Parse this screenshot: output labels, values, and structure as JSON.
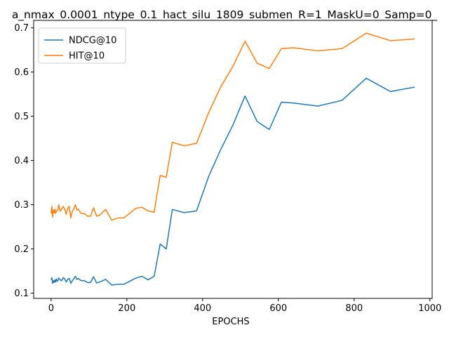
{
  "chart_data": {
    "type": "line",
    "title": "a_nmax_0.0001_ntype_0.1_hact_silu_1809_submen_R=1_MaskU=0_Samp=0_",
    "xlabel": "EPOCHS",
    "ylabel": "",
    "xlim": [
      -46,
      1006
    ],
    "ylim": [
      0.088,
      0.717
    ],
    "xticks": [
      0,
      200,
      400,
      600,
      800,
      1000
    ],
    "yticks": [
      0.1,
      0.2,
      0.3,
      0.4,
      0.5,
      0.6,
      0.7
    ],
    "xtick_labels": [
      "0",
      "200",
      "400",
      "600",
      "800",
      "1000"
    ],
    "ytick_labels": [
      "0.1",
      "0.2",
      "0.3",
      "0.4",
      "0.5",
      "0.6",
      "0.7"
    ],
    "grid": false,
    "legend_position": "upper-left",
    "series": [
      {
        "name": "NDCG@10",
        "color": "#1f77b4",
        "x": [
          0,
          2,
          4,
          6,
          8,
          10,
          12,
          14,
          16,
          18,
          20,
          24,
          28,
          32,
          36,
          40,
          44,
          48,
          52,
          56,
          60,
          64,
          68,
          72,
          76,
          80,
          88,
          96,
          104,
          112,
          120,
          128,
          144,
          160,
          176,
          192,
          224,
          240,
          256,
          272,
          288,
          304,
          320,
          352,
          384,
          416,
          448,
          480,
          512,
          544,
          576,
          608,
          640,
          704,
          768,
          832,
          896,
          960
        ],
        "y": [
          0.13,
          0.135,
          0.122,
          0.128,
          0.124,
          0.13,
          0.125,
          0.132,
          0.127,
          0.128,
          0.134,
          0.13,
          0.128,
          0.135,
          0.132,
          0.125,
          0.131,
          0.133,
          0.122,
          0.128,
          0.132,
          0.138,
          0.131,
          0.133,
          0.13,
          0.128,
          0.128,
          0.124,
          0.124,
          0.137,
          0.123,
          0.125,
          0.131,
          0.118,
          0.12,
          0.12,
          0.134,
          0.138,
          0.13,
          0.138,
          0.211,
          0.2,
          0.289,
          0.282,
          0.286,
          0.364,
          0.425,
          0.48,
          0.546,
          0.488,
          0.47,
          0.532,
          0.53,
          0.523,
          0.536,
          0.586,
          0.556,
          0.566
        ]
      },
      {
        "name": "HIT@10",
        "color": "#ff7f0e",
        "x": [
          0,
          2,
          4,
          6,
          8,
          10,
          12,
          14,
          16,
          18,
          20,
          24,
          28,
          32,
          36,
          40,
          44,
          48,
          52,
          56,
          60,
          64,
          68,
          72,
          76,
          80,
          88,
          96,
          104,
          112,
          120,
          128,
          144,
          160,
          176,
          192,
          224,
          240,
          256,
          272,
          288,
          304,
          320,
          352,
          384,
          416,
          448,
          480,
          512,
          544,
          576,
          608,
          640,
          704,
          768,
          832,
          896,
          960
        ],
        "y": [
          0.28,
          0.296,
          0.272,
          0.288,
          0.282,
          0.29,
          0.28,
          0.285,
          0.288,
          0.288,
          0.3,
          0.285,
          0.29,
          0.296,
          0.29,
          0.278,
          0.292,
          0.296,
          0.27,
          0.285,
          0.29,
          0.3,
          0.288,
          0.29,
          0.284,
          0.28,
          0.28,
          0.274,
          0.274,
          0.293,
          0.274,
          0.276,
          0.289,
          0.265,
          0.27,
          0.27,
          0.292,
          0.294,
          0.286,
          0.283,
          0.366,
          0.362,
          0.441,
          0.433,
          0.439,
          0.508,
          0.567,
          0.613,
          0.67,
          0.62,
          0.608,
          0.653,
          0.655,
          0.648,
          0.653,
          0.688,
          0.671,
          0.675
        ]
      }
    ]
  }
}
